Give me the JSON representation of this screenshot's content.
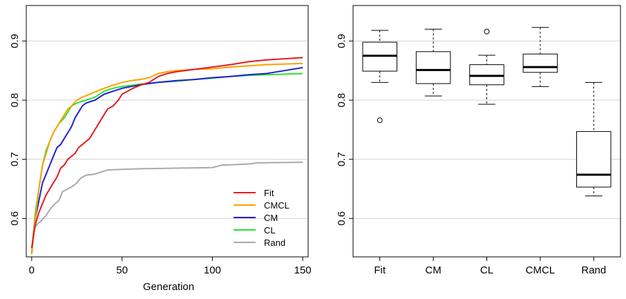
{
  "chart_data": [
    {
      "type": "line",
      "title": "",
      "xlabel": "Generation",
      "ylabel": "",
      "xlim": [
        -3,
        153
      ],
      "ylim": [
        0.535,
        0.96
      ],
      "xticks": [
        0,
        50,
        100,
        150
      ],
      "yticks": [
        0.6,
        0.7,
        0.8,
        0.9
      ],
      "grid": "horizontal",
      "legend_position": "bottom-right",
      "series": [
        {
          "name": "Fit",
          "color": "#e41a1c",
          "points": [
            [
              0,
              0.55
            ],
            [
              2,
              0.59
            ],
            [
              4,
              0.61
            ],
            [
              6,
              0.625
            ],
            [
              8,
              0.64
            ],
            [
              10,
              0.65
            ],
            [
              12,
              0.66
            ],
            [
              14,
              0.67
            ],
            [
              16,
              0.685
            ],
            [
              18,
              0.69
            ],
            [
              20,
              0.7
            ],
            [
              22,
              0.705
            ],
            [
              24,
              0.71
            ],
            [
              26,
              0.72
            ],
            [
              28,
              0.725
            ],
            [
              30,
              0.73
            ],
            [
              32,
              0.735
            ],
            [
              34,
              0.745
            ],
            [
              36,
              0.755
            ],
            [
              38,
              0.765
            ],
            [
              40,
              0.775
            ],
            [
              42,
              0.785
            ],
            [
              45,
              0.79
            ],
            [
              48,
              0.8
            ],
            [
              50,
              0.81
            ],
            [
              53,
              0.815
            ],
            [
              56,
              0.82
            ],
            [
              60,
              0.825
            ],
            [
              65,
              0.83
            ],
            [
              70,
              0.84
            ],
            [
              75,
              0.845
            ],
            [
              80,
              0.848
            ],
            [
              90,
              0.852
            ],
            [
              100,
              0.856
            ],
            [
              110,
              0.86
            ],
            [
              120,
              0.865
            ],
            [
              130,
              0.868
            ],
            [
              140,
              0.87
            ],
            [
              150,
              0.872
            ]
          ]
        },
        {
          "name": "CMCL",
          "color": "#ff9f00",
          "points": [
            [
              0,
              0.54
            ],
            [
              2,
              0.6
            ],
            [
              4,
              0.65
            ],
            [
              6,
              0.69
            ],
            [
              8,
              0.71
            ],
            [
              10,
              0.73
            ],
            [
              12,
              0.745
            ],
            [
              15,
              0.76
            ],
            [
              18,
              0.775
            ],
            [
              20,
              0.785
            ],
            [
              22,
              0.79
            ],
            [
              25,
              0.8
            ],
            [
              28,
              0.805
            ],
            [
              32,
              0.81
            ],
            [
              36,
              0.815
            ],
            [
              40,
              0.82
            ],
            [
              45,
              0.825
            ],
            [
              50,
              0.83
            ],
            [
              55,
              0.833
            ],
            [
              60,
              0.835
            ],
            [
              65,
              0.838
            ],
            [
              70,
              0.845
            ],
            [
              75,
              0.848
            ],
            [
              80,
              0.85
            ],
            [
              90,
              0.852
            ],
            [
              100,
              0.853
            ],
            [
              110,
              0.856
            ],
            [
              120,
              0.858
            ],
            [
              130,
              0.86
            ],
            [
              140,
              0.861
            ],
            [
              150,
              0.862
            ]
          ]
        },
        {
          "name": "CM",
          "color": "#1f1fd6",
          "points": [
            [
              0,
              0.54
            ],
            [
              2,
              0.6
            ],
            [
              4,
              0.63
            ],
            [
              6,
              0.66
            ],
            [
              8,
              0.675
            ],
            [
              10,
              0.69
            ],
            [
              12,
              0.705
            ],
            [
              14,
              0.72
            ],
            [
              16,
              0.725
            ],
            [
              18,
              0.735
            ],
            [
              20,
              0.745
            ],
            [
              22,
              0.755
            ],
            [
              24,
              0.77
            ],
            [
              26,
              0.78
            ],
            [
              28,
              0.79
            ],
            [
              30,
              0.795
            ],
            [
              35,
              0.8
            ],
            [
              40,
              0.81
            ],
            [
              45,
              0.815
            ],
            [
              50,
              0.82
            ],
            [
              55,
              0.823
            ],
            [
              60,
              0.826
            ],
            [
              70,
              0.83
            ],
            [
              80,
              0.833
            ],
            [
              90,
              0.835
            ],
            [
              100,
              0.838
            ],
            [
              110,
              0.84
            ],
            [
              120,
              0.843
            ],
            [
              130,
              0.845
            ],
            [
              140,
              0.85
            ],
            [
              150,
              0.855
            ]
          ]
        },
        {
          "name": "CL",
          "color": "#2ee02e",
          "points": [
            [
              0,
              0.54
            ],
            [
              2,
              0.61
            ],
            [
              4,
              0.65
            ],
            [
              6,
              0.69
            ],
            [
              8,
              0.715
            ],
            [
              10,
              0.73
            ],
            [
              12,
              0.745
            ],
            [
              15,
              0.76
            ],
            [
              18,
              0.77
            ],
            [
              20,
              0.78
            ],
            [
              22,
              0.79
            ],
            [
              25,
              0.795
            ],
            [
              30,
              0.8
            ],
            [
              35,
              0.805
            ],
            [
              40,
              0.815
            ],
            [
              45,
              0.82
            ],
            [
              50,
              0.823
            ],
            [
              55,
              0.825
            ],
            [
              60,
              0.827
            ],
            [
              70,
              0.83
            ],
            [
              80,
              0.832
            ],
            [
              90,
              0.835
            ],
            [
              100,
              0.837
            ],
            [
              110,
              0.84
            ],
            [
              120,
              0.842
            ],
            [
              130,
              0.843
            ],
            [
              140,
              0.844
            ],
            [
              150,
              0.845
            ]
          ]
        },
        {
          "name": "Rand",
          "color": "#a9a9a9",
          "points": [
            [
              0,
              0.54
            ],
            [
              1,
              0.58
            ],
            [
              3,
              0.59
            ],
            [
              5,
              0.595
            ],
            [
              8,
              0.605
            ],
            [
              10,
              0.615
            ],
            [
              13,
              0.625
            ],
            [
              15,
              0.63
            ],
            [
              17,
              0.645
            ],
            [
              20,
              0.65
            ],
            [
              23,
              0.655
            ],
            [
              25,
              0.66
            ],
            [
              27,
              0.668
            ],
            [
              30,
              0.673
            ],
            [
              35,
              0.675
            ],
            [
              40,
              0.68
            ],
            [
              42,
              0.682
            ],
            [
              50,
              0.683
            ],
            [
              60,
              0.684
            ],
            [
              80,
              0.685
            ],
            [
              100,
              0.686
            ],
            [
              105,
              0.69
            ],
            [
              120,
              0.692
            ],
            [
              125,
              0.694
            ],
            [
              150,
              0.695
            ]
          ]
        }
      ]
    },
    {
      "type": "box",
      "title": "",
      "xlabel": "",
      "ylabel": "",
      "ylim": [
        0.535,
        0.96
      ],
      "yticks": [
        0.6,
        0.7,
        0.8,
        0.9
      ],
      "grid": "horizontal",
      "categories": [
        "Fit",
        "CM",
        "CL",
        "CMCL",
        "Rand"
      ],
      "boxes": [
        {
          "name": "Fit",
          "whisker_low": 0.83,
          "q1": 0.849,
          "median": 0.875,
          "q3": 0.898,
          "whisker_high": 0.918,
          "outliers": [
            0.766
          ]
        },
        {
          "name": "CM",
          "whisker_low": 0.807,
          "q1": 0.828,
          "median": 0.851,
          "q3": 0.882,
          "whisker_high": 0.92,
          "outliers": []
        },
        {
          "name": "CL",
          "whisker_low": 0.793,
          "q1": 0.826,
          "median": 0.841,
          "q3": 0.86,
          "whisker_high": 0.876,
          "outliers": [
            0.916
          ]
        },
        {
          "name": "CMCL",
          "whisker_low": 0.823,
          "q1": 0.847,
          "median": 0.856,
          "q3": 0.878,
          "whisker_high": 0.923,
          "outliers": []
        },
        {
          "name": "Rand",
          "whisker_low": 0.638,
          "q1": 0.653,
          "median": 0.674,
          "q3": 0.747,
          "whisker_high": 0.83,
          "outliers": []
        }
      ]
    }
  ]
}
